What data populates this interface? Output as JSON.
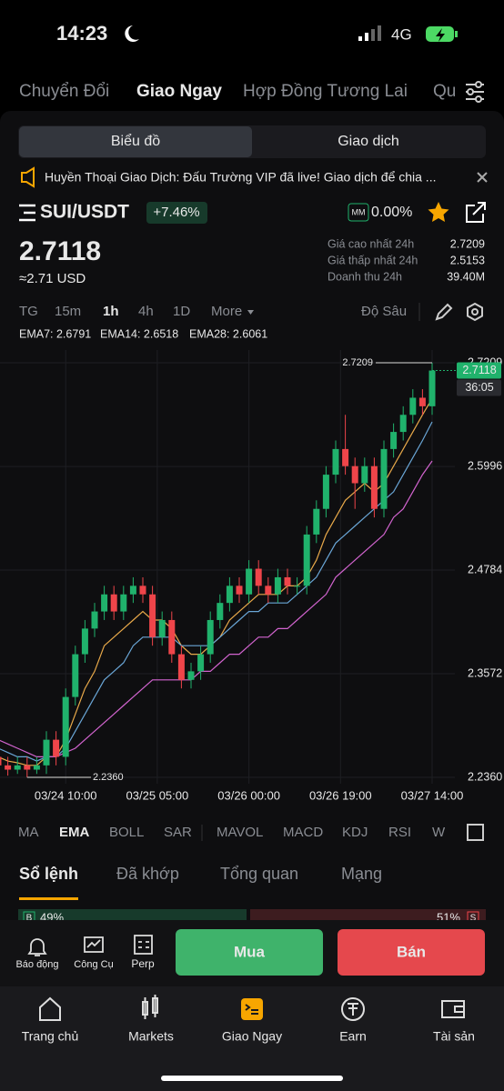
{
  "status": {
    "time": "14:23",
    "network": "4G"
  },
  "tabs": [
    "Chuyển Đổi",
    "Giao Ngay",
    "Hợp Đồng Tương Lai",
    "Qu"
  ],
  "segment": [
    "Biểu đồ",
    "Giao dịch"
  ],
  "banner": "Huyền Thoại Giao Dịch: Đấu Trường VIP đã live! Giao dịch để chia ...",
  "pair": {
    "symbol": "SUI/USDT",
    "change": "+7.46%",
    "mm": "MM",
    "mm_value": "0.00%"
  },
  "price": {
    "last": "2.7118",
    "usd": "≈2.71 USD"
  },
  "stats": [
    {
      "label": "Giá cao nhất 24h",
      "value": "2.7209"
    },
    {
      "label": "Giá thấp nhất 24h",
      "value": "2.5153"
    },
    {
      "label": "Doanh thu 24h",
      "value": "39.40M"
    }
  ],
  "intervals": [
    "TG",
    "15m",
    "1h",
    "4h",
    "1D",
    "More"
  ],
  "depth_label": "Độ Sâu",
  "ema_legend": [
    "EMA7: 2.6791",
    "EMA14: 2.6518",
    "EMA28: 2.6061"
  ],
  "chart_data": {
    "type": "candlestick",
    "open": [
      2.28,
      2.27,
      2.26,
      2.25,
      2.245,
      2.25,
      2.245,
      2.25,
      2.28,
      2.26,
      2.33,
      2.38,
      2.41,
      2.43,
      2.45,
      2.43,
      2.45,
      2.46,
      2.45,
      2.4,
      2.42,
      2.38,
      2.35,
      2.36,
      2.38,
      2.42,
      2.44,
      2.46,
      2.45,
      2.48,
      2.46,
      2.45,
      2.47,
      2.46,
      2.46,
      2.52,
      2.55,
      2.59,
      2.62,
      2.6,
      2.58,
      2.6,
      2.55,
      2.62,
      2.64,
      2.66,
      2.68,
      2.67
    ],
    "high": [
      2.29,
      2.28,
      2.27,
      2.26,
      2.26,
      2.26,
      2.26,
      2.29,
      2.29,
      2.34,
      2.39,
      2.42,
      2.44,
      2.46,
      2.46,
      2.46,
      2.47,
      2.47,
      2.46,
      2.43,
      2.43,
      2.39,
      2.37,
      2.39,
      2.43,
      2.45,
      2.47,
      2.47,
      2.49,
      2.49,
      2.47,
      2.48,
      2.48,
      2.47,
      2.53,
      2.56,
      2.6,
      2.63,
      2.66,
      2.61,
      2.61,
      2.61,
      2.63,
      2.65,
      2.67,
      2.69,
      2.69,
      2.7209
    ],
    "low": [
      2.26,
      2.25,
      2.24,
      2.238,
      2.24,
      2.236,
      2.24,
      2.24,
      2.25,
      2.25,
      2.32,
      2.37,
      2.4,
      2.42,
      2.42,
      2.42,
      2.44,
      2.44,
      2.39,
      2.39,
      2.37,
      2.34,
      2.34,
      2.35,
      2.37,
      2.41,
      2.43,
      2.44,
      2.44,
      2.45,
      2.44,
      2.44,
      2.45,
      2.45,
      2.45,
      2.51,
      2.54,
      2.58,
      2.59,
      2.55,
      2.57,
      2.54,
      2.54,
      2.61,
      2.63,
      2.65,
      2.66,
      2.66
    ],
    "close": [
      2.27,
      2.26,
      2.25,
      2.245,
      2.25,
      2.245,
      2.25,
      2.28,
      2.26,
      2.33,
      2.38,
      2.41,
      2.43,
      2.45,
      2.43,
      2.45,
      2.46,
      2.45,
      2.4,
      2.42,
      2.38,
      2.35,
      2.36,
      2.38,
      2.42,
      2.44,
      2.46,
      2.45,
      2.48,
      2.46,
      2.45,
      2.47,
      2.46,
      2.46,
      2.52,
      2.55,
      2.59,
      2.62,
      2.6,
      2.58,
      2.6,
      2.55,
      2.62,
      2.64,
      2.66,
      2.68,
      2.67,
      2.7118
    ],
    "up_color": "#20b26c",
    "down_color": "#ef454a",
    "series": [
      {
        "name": "EMA7",
        "color": "#e8a94a",
        "values": [
          2.27,
          2.27,
          2.26,
          2.255,
          2.253,
          2.25,
          2.25,
          2.26,
          2.26,
          2.28,
          2.31,
          2.34,
          2.36,
          2.39,
          2.4,
          2.41,
          2.42,
          2.43,
          2.42,
          2.42,
          2.41,
          2.39,
          2.38,
          2.38,
          2.39,
          2.4,
          2.42,
          2.43,
          2.44,
          2.45,
          2.45,
          2.45,
          2.46,
          2.46,
          2.47,
          2.49,
          2.52,
          2.54,
          2.56,
          2.57,
          2.58,
          2.57,
          2.58,
          2.6,
          2.62,
          2.64,
          2.66,
          2.6791
        ]
      },
      {
        "name": "EMA14",
        "color": "#6aa6d6",
        "values": [
          2.28,
          2.275,
          2.27,
          2.265,
          2.26,
          2.26,
          2.255,
          2.26,
          2.26,
          2.27,
          2.29,
          2.31,
          2.33,
          2.35,
          2.36,
          2.37,
          2.39,
          2.4,
          2.4,
          2.4,
          2.4,
          2.39,
          2.39,
          2.39,
          2.39,
          2.4,
          2.41,
          2.42,
          2.43,
          2.43,
          2.44,
          2.44,
          2.44,
          2.45,
          2.46,
          2.47,
          2.49,
          2.51,
          2.52,
          2.53,
          2.54,
          2.55,
          2.56,
          2.57,
          2.59,
          2.61,
          2.63,
          2.6518
        ]
      },
      {
        "name": "EMA28",
        "color": "#d264cf",
        "values": [
          2.29,
          2.285,
          2.28,
          2.275,
          2.27,
          2.265,
          2.26,
          2.26,
          2.26,
          2.265,
          2.27,
          2.28,
          2.29,
          2.3,
          2.31,
          2.32,
          2.33,
          2.34,
          2.35,
          2.35,
          2.35,
          2.35,
          2.35,
          2.36,
          2.36,
          2.37,
          2.38,
          2.38,
          2.39,
          2.4,
          2.4,
          2.41,
          2.41,
          2.42,
          2.43,
          2.44,
          2.45,
          2.47,
          2.48,
          2.49,
          2.5,
          2.51,
          2.52,
          2.54,
          2.55,
          2.57,
          2.59,
          2.6061
        ]
      }
    ],
    "ylim": [
      2.236,
      2.7209
    ],
    "yticks": [
      {
        "value": 2.236,
        "label": "2.2360"
      },
      2.3572,
      2.4784,
      2.5996,
      2.7209
    ],
    "xticks": [
      {
        "value": 9,
        "label": "03/24 10:00"
      },
      {
        "value": 18.5,
        "label": "03/25 05:00"
      },
      {
        "value": 28,
        "label": "03/26 00:00"
      },
      {
        "value": 37.5,
        "label": "03/26 19:00"
      },
      {
        "value": 47,
        "label": "03/27 14:00"
      }
    ],
    "last_price": 2.7118,
    "countdown": "36:05",
    "high_marker": 2.7209,
    "low_marker": {
      "value": 2.236,
      "label": "2.2360"
    },
    "grid": true
  },
  "indicators": [
    "MA",
    "EMA",
    "BOLL",
    "SAR",
    "MAVOL",
    "MACD",
    "KDJ",
    "RSI",
    "W"
  ],
  "order_tabs": [
    "Sổ lệnh",
    "Đã khớp",
    "Tổng quan",
    "Mạng"
  ],
  "depth_bar": {
    "buy_tag": "B",
    "buy": "49%",
    "sell": "51%",
    "sell_tag": "S"
  },
  "tools": [
    "Báo động",
    "Công Cụ",
    "Perp"
  ],
  "buy": "Mua",
  "sell": "Bán",
  "nav": [
    "Trang chủ",
    "Markets",
    "Giao Ngay",
    "Earn",
    "Tài sản"
  ]
}
